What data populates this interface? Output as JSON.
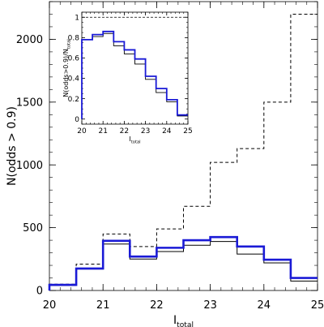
{
  "chart_data": [
    {
      "type": "line",
      "style": "step",
      "xlim": [
        20,
        25
      ],
      "ylim": [
        0,
        2300
      ],
      "xticks": [
        20,
        21,
        22,
        23,
        24,
        25
      ],
      "yticks": [
        0,
        500,
        1000,
        1500,
        2000
      ],
      "xlabel": "I",
      "xlabel_sub": "total",
      "ylabel": "N(odds > 0.9)",
      "bin_edges": [
        20,
        20.5,
        21,
        21.5,
        22,
        22.5,
        23,
        23.5,
        24,
        24.5,
        25
      ],
      "series": [
        {
          "style": "dashed",
          "color": "#000000",
          "values": [
            50,
            210,
            450,
            350,
            490,
            670,
            1020,
            1130,
            1500,
            2200
          ]
        },
        {
          "style": "thin",
          "color": "#000000",
          "values": [
            40,
            170,
            370,
            250,
            310,
            360,
            390,
            290,
            220,
            75
          ]
        },
        {
          "style": "thick",
          "color": "#1a1ad6",
          "values": [
            45,
            175,
            395,
            270,
            340,
            400,
            425,
            350,
            245,
            100
          ]
        }
      ]
    },
    {
      "type": "line",
      "style": "step",
      "inset": true,
      "xlim": [
        20,
        25
      ],
      "ylim": [
        -0.05,
        1.05
      ],
      "xticks": [
        20,
        21,
        22,
        23,
        24,
        25
      ],
      "yticks": [
        0,
        0.2,
        0.4,
        0.6,
        0.8,
        1
      ],
      "xlabel": "I",
      "xlabel_sub": "total",
      "ylabel": "N(odds>0.9)/N",
      "ylabel_sub": "total",
      "reference_line": {
        "y": 1,
        "style": "dashed"
      },
      "bin_edges": [
        20,
        20.5,
        21,
        21.5,
        22,
        22.5,
        23,
        23.5,
        24,
        24.5,
        25
      ],
      "series": [
        {
          "style": "thin",
          "color": "#000000",
          "values": [
            0.78,
            0.81,
            0.84,
            0.72,
            0.64,
            0.54,
            0.39,
            0.26,
            0.17,
            0.03
          ]
        },
        {
          "style": "thick",
          "color": "#1a1ad6",
          "values": [
            0.78,
            0.83,
            0.86,
            0.76,
            0.68,
            0.59,
            0.42,
            0.3,
            0.19,
            0.04
          ]
        }
      ]
    }
  ]
}
